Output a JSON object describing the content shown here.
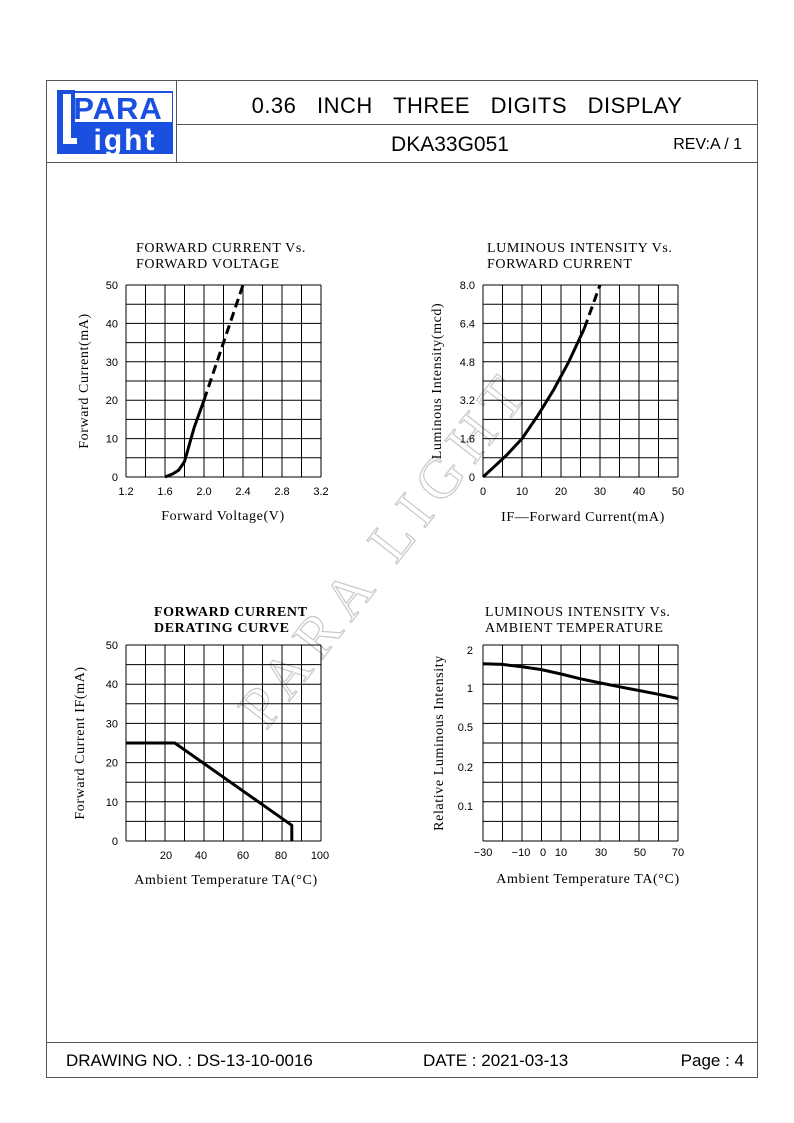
{
  "header": {
    "logo_text": [
      "PARA",
      "Light"
    ],
    "title": "0.36   INCH   THREE   DIGITS   DISPLAY",
    "part_number": "DKA33G051",
    "revision": "REV:A / 1"
  },
  "watermark": "PARA LIGHT",
  "footer": {
    "drawing_no": "DRAWING NO. : DS-13-10-0016",
    "date": "DATE : 2021-03-13",
    "page": "Page : 4"
  },
  "chart_data": [
    {
      "type": "line",
      "title": [
        "FORWARD CURRENT Vs.",
        "FORWARD VOLTAGE"
      ],
      "xlabel": "Forward Voltage(V)",
      "ylabel": "Forward Current(mA)",
      "xticks": [
        "1.2",
        "1.6",
        "2.0",
        "2.4",
        "2.8",
        "3.2"
      ],
      "yticks": [
        "0",
        "10",
        "20",
        "30",
        "40",
        "50"
      ],
      "xlim": [
        1.2,
        3.2
      ],
      "ylim": [
        0,
        50
      ],
      "grid": true,
      "series": [
        {
          "style": "solid",
          "x": [
            1.6,
            1.68,
            1.74,
            1.8,
            1.85,
            1.9,
            2.0
          ],
          "y": [
            0,
            0.8,
            1.8,
            4,
            8.5,
            13,
            20
          ]
        },
        {
          "style": "dashed",
          "x": [
            2.0,
            2.2,
            2.4
          ],
          "y": [
            20,
            35,
            50
          ]
        }
      ]
    },
    {
      "type": "line",
      "title": [
        "LUMINOUS INTENSITY Vs.",
        "FORWARD CURRENT"
      ],
      "xlabel": "IF—Forward Current(mA)",
      "ylabel": "Luminous Intensity(mcd)",
      "xticks": [
        "0",
        "10",
        "20",
        "30",
        "40",
        "50"
      ],
      "yticks": [
        "0",
        "1.6",
        "3.2",
        "4.8",
        "6.4",
        "8.0"
      ],
      "xlim": [
        0,
        50
      ],
      "ylim": [
        0,
        8.0
      ],
      "grid": true,
      "series": [
        {
          "style": "solid",
          "x": [
            0,
            3,
            6,
            10,
            14,
            18,
            22,
            26
          ],
          "y": [
            0,
            0.45,
            0.9,
            1.6,
            2.55,
            3.6,
            4.8,
            6.2
          ]
        },
        {
          "style": "dashed",
          "x": [
            26,
            28,
            30
          ],
          "y": [
            6.2,
            7.1,
            8.0
          ]
        }
      ]
    },
    {
      "type": "line",
      "title": [
        "FORWARD CURRENT",
        "DERATING CURVE"
      ],
      "xlabel": "Ambient Temperature TA(°C)",
      "ylabel": "Forward Current IF(mA)",
      "xticks": [
        "20",
        "40",
        "60",
        "80",
        "100"
      ],
      "yticks": [
        "0",
        "10",
        "20",
        "30",
        "40",
        "50"
      ],
      "xlim": [
        0,
        100
      ],
      "ylim": [
        0,
        50
      ],
      "grid": true,
      "series": [
        {
          "style": "solid",
          "x": [
            0,
            25,
            85,
            85
          ],
          "y": [
            25,
            25,
            4,
            0
          ]
        }
      ]
    },
    {
      "type": "line",
      "title": [
        "LUMINOUS INTENSITY Vs.",
        "AMBIENT TEMPERATURE"
      ],
      "xlabel": "Ambient Temperature TA(°C)",
      "ylabel": "Relative Luminous Intensity",
      "xticks": [
        "−30",
        "−10",
        "0",
        "10",
        "30",
        "50",
        "70"
      ],
      "yticks": [
        "0.1",
        "0.2",
        "0.5",
        "1",
        "2"
      ],
      "xlim": [
        -30,
        70
      ],
      "grid": true,
      "series": [
        {
          "style": "solid",
          "x": [
            -30,
            -20,
            -10,
            0,
            10,
            20,
            30,
            40,
            50,
            60,
            70
          ],
          "y": [
            1.4,
            1.38,
            1.32,
            1.25,
            1.15,
            1.05,
            0.97,
            0.9,
            0.84,
            0.78,
            0.72
          ]
        }
      ]
    }
  ]
}
